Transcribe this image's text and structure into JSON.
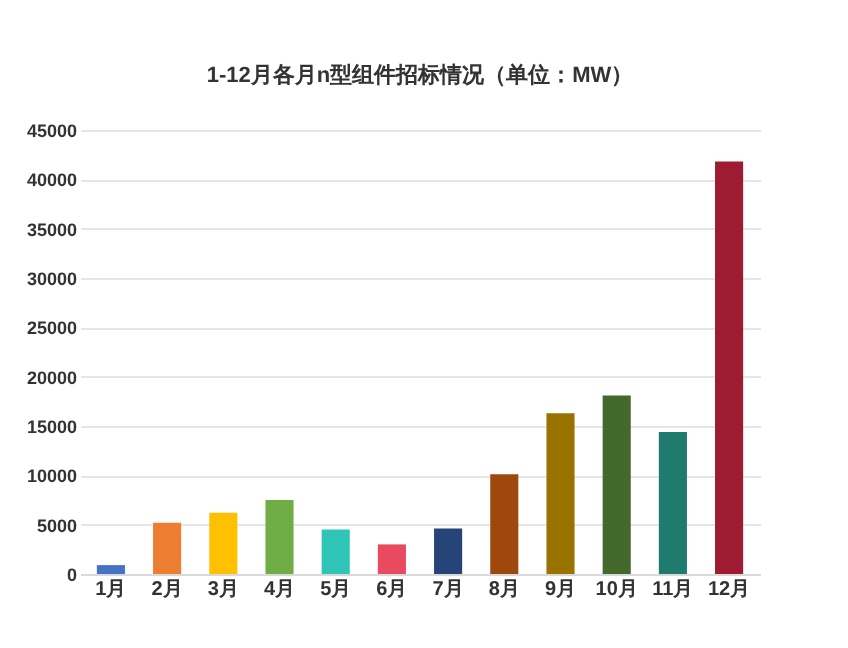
{
  "chart_data": {
    "type": "bar",
    "title": "1-12月各月n型组件招标情况（单位：MW）",
    "categories": [
      "1月",
      "2月",
      "3月",
      "4月",
      "5月",
      "6月",
      "7月",
      "8月",
      "9月",
      "10月",
      "11月",
      "12月"
    ],
    "values": [
      900,
      5200,
      6200,
      7500,
      4500,
      3000,
      4600,
      10100,
      16300,
      18100,
      14400,
      41800
    ],
    "colors": [
      "#4472c4",
      "#ed7d31",
      "#ffc000",
      "#70ad47",
      "#2ec4b6",
      "#e84a5f",
      "#264478",
      "#9e480e",
      "#997300",
      "#43682b",
      "#1e7b6e",
      "#9e1b32"
    ],
    "ylim": [
      0,
      45000
    ],
    "yticks": [
      0,
      5000,
      10000,
      15000,
      20000,
      25000,
      30000,
      35000,
      40000,
      45000
    ],
    "grid": "y"
  }
}
